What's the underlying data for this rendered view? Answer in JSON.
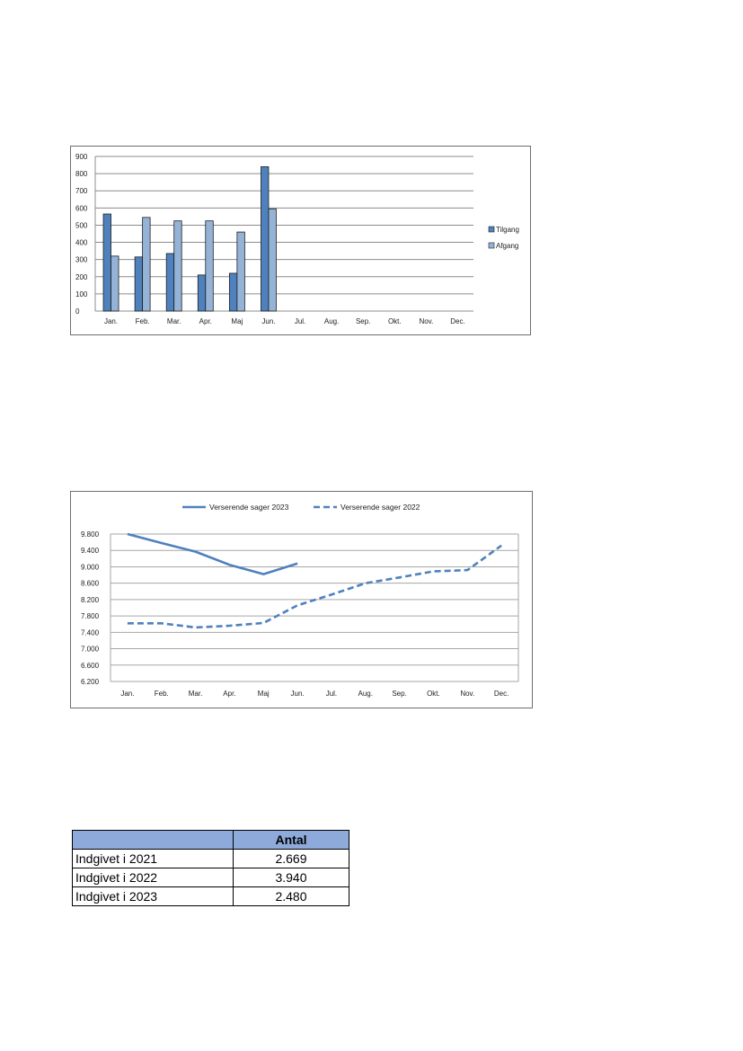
{
  "chart_data": [
    {
      "type": "bar",
      "categories": [
        "Jan.",
        "Feb.",
        "Mar.",
        "Apr.",
        "Maj",
        "Jun.",
        "Jul.",
        "Aug.",
        "Sep.",
        "Okt.",
        "Nov.",
        "Dec."
      ],
      "series": [
        {
          "name": "Tilgang",
          "color": "#4f81bd",
          "values": [
            565,
            315,
            335,
            210,
            220,
            840,
            null,
            null,
            null,
            null,
            null,
            null
          ]
        },
        {
          "name": "Afgang",
          "color": "#95b3d7",
          "values": [
            320,
            545,
            525,
            525,
            460,
            595,
            null,
            null,
            null,
            null,
            null,
            null
          ]
        }
      ],
      "ylim": [
        0,
        900
      ],
      "yticks": [
        0,
        100,
        200,
        300,
        400,
        500,
        600,
        700,
        800,
        900
      ],
      "grid": true,
      "legend": "right"
    },
    {
      "type": "line",
      "categories": [
        "Jan.",
        "Feb.",
        "Mar.",
        "Apr.",
        "Maj",
        "Jun.",
        "Jul.",
        "Aug.",
        "Sep.",
        "Okt.",
        "Nov.",
        "Dec."
      ],
      "series": [
        {
          "name": "Verserende sager 2023",
          "color": "#4f81bd",
          "style": "solid",
          "values": [
            9800,
            9580,
            9370,
            9050,
            8820,
            9080,
            null,
            null,
            null,
            null,
            null,
            null
          ]
        },
        {
          "name": "Verserende sager 2022",
          "color": "#4f81bd",
          "style": "dashed",
          "values": [
            7620,
            7620,
            7520,
            7560,
            7630,
            8060,
            8320,
            8600,
            8740,
            8890,
            8920,
            9520
          ]
        }
      ],
      "ylim": [
        6200,
        9800
      ],
      "yticks": [
        "6.200",
        "6.600",
        "7.000",
        "7.400",
        "7.800",
        "8.200",
        "8.600",
        "9.000",
        "9.400",
        "9.800"
      ],
      "grid": true,
      "legend": "top"
    }
  ],
  "table": {
    "header": [
      "",
      "Antal"
    ],
    "rows": [
      {
        "label": "Indgivet i 2021",
        "value": "2.669"
      },
      {
        "label": "Indgivet i 2022",
        "value": "3.940"
      },
      {
        "label": "Indgivet i 2023",
        "value": "2.480"
      }
    ]
  }
}
